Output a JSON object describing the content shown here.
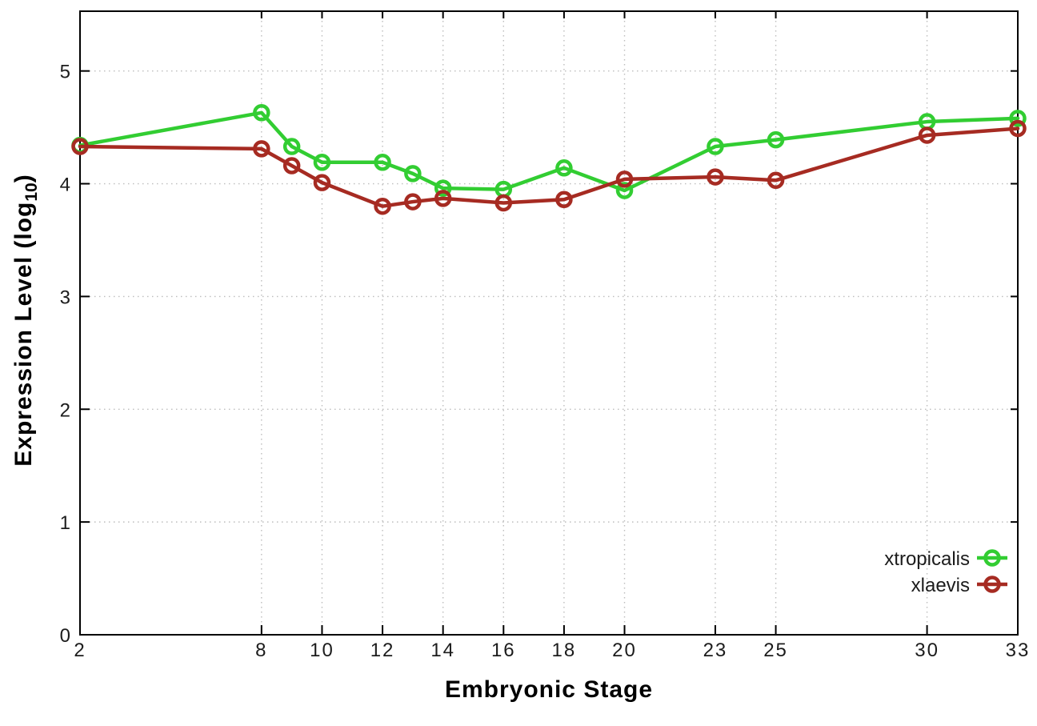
{
  "figure": {
    "background": "#ffffff",
    "border_color": "#000000",
    "grid_color": "#bdbdbd",
    "tick_text_color": "#1c1c1c"
  },
  "chart_data": {
    "type": "line",
    "title": "",
    "xlabel": "Embryonic Stage",
    "ylabel": "Expression Level (log10)",
    "ylabel_parts": {
      "prefix": "Expression Level (log",
      "sub": "10",
      "suffix": ")"
    },
    "x": [
      2,
      8,
      9,
      10,
      12,
      13,
      14,
      16,
      18,
      20,
      23,
      25,
      30,
      33
    ],
    "series": [
      {
        "name": "xtropicalis",
        "color": "#32cd32",
        "values": [
          4.34,
          4.63,
          4.33,
          4.19,
          4.19,
          4.09,
          3.96,
          3.95,
          4.14,
          3.94,
          4.33,
          4.39,
          4.55,
          4.58
        ]
      },
      {
        "name": "xlaevis",
        "color": "#a62b22",
        "values": [
          4.33,
          4.31,
          4.16,
          4.01,
          3.8,
          3.84,
          3.87,
          3.83,
          3.86,
          4.04,
          4.06,
          4.03,
          4.43,
          4.49
        ]
      }
    ],
    "xticks": [
      2,
      8,
      10,
      12,
      14,
      16,
      18,
      20,
      23,
      25,
      30,
      33
    ],
    "yticks": [
      0,
      1,
      2,
      3,
      4,
      5
    ],
    "xlim": [
      2,
      33
    ],
    "ylim": [
      0,
      5.53
    ],
    "grid": true,
    "grid_style": "dotted",
    "marker": "open-circle",
    "legend_position": "inside-bottom-right",
    "legend_entries": [
      "xtropicalis",
      "xlaevis"
    ]
  }
}
